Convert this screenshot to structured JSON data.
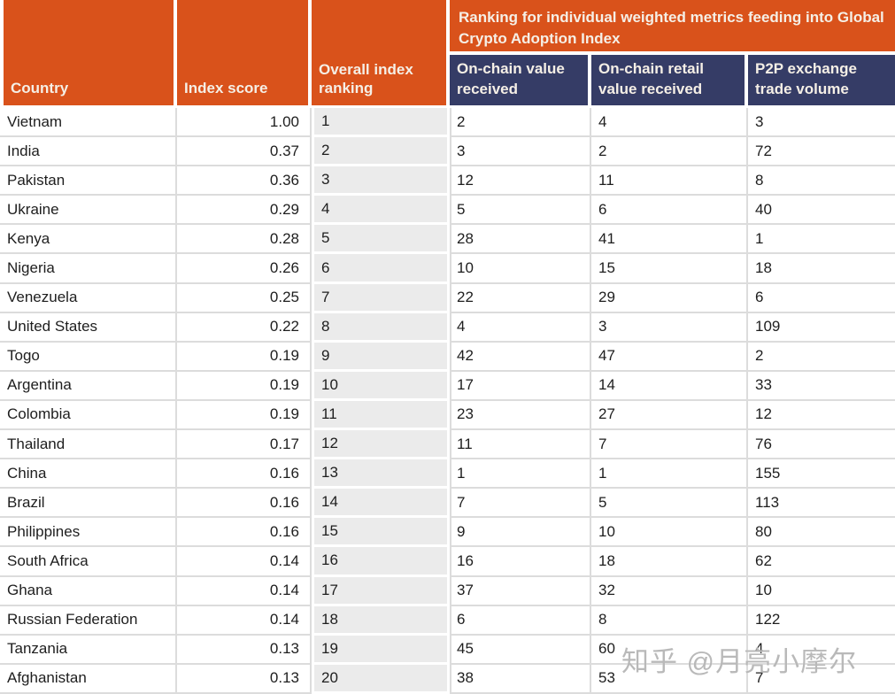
{
  "chart_data": {
    "type": "table",
    "group_header": "Ranking for individual weighted metrics feeding into Global Crypto Adoption Index",
    "columns": [
      "Country",
      "Index score",
      "Overall index ranking",
      "On-chain value received",
      "On-chain retail value received",
      "P2P exchange trade volume"
    ],
    "rows": [
      [
        "Vietnam",
        "1.00",
        "1",
        "2",
        "4",
        "3"
      ],
      [
        "India",
        "0.37",
        "2",
        "3",
        "2",
        "72"
      ],
      [
        "Pakistan",
        "0.36",
        "3",
        "12",
        "11",
        "8"
      ],
      [
        "Ukraine",
        "0.29",
        "4",
        "5",
        "6",
        "40"
      ],
      [
        "Kenya",
        "0.28",
        "5",
        "28",
        "41",
        "1"
      ],
      [
        "Nigeria",
        "0.26",
        "6",
        "10",
        "15",
        "18"
      ],
      [
        "Venezuela",
        "0.25",
        "7",
        "22",
        "29",
        "6"
      ],
      [
        "United States",
        "0.22",
        "8",
        "4",
        "3",
        "109"
      ],
      [
        "Togo",
        "0.19",
        "9",
        "42",
        "47",
        "2"
      ],
      [
        "Argentina",
        "0.19",
        "10",
        "17",
        "14",
        "33"
      ],
      [
        "Colombia",
        "0.19",
        "11",
        "23",
        "27",
        "12"
      ],
      [
        "Thailand",
        "0.17",
        "12",
        "11",
        "7",
        "76"
      ],
      [
        "China",
        "0.16",
        "13",
        "1",
        "1",
        "155"
      ],
      [
        "Brazil",
        "0.16",
        "14",
        "7",
        "5",
        "113"
      ],
      [
        "Philippines",
        "0.16",
        "15",
        "9",
        "10",
        "80"
      ],
      [
        "South Africa",
        "0.14",
        "16",
        "16",
        "18",
        "62"
      ],
      [
        "Ghana",
        "0.14",
        "17",
        "37",
        "32",
        "10"
      ],
      [
        "Russian Federation",
        "0.14",
        "18",
        "6",
        "8",
        "122"
      ],
      [
        "Tanzania",
        "0.13",
        "19",
        "45",
        "60",
        "4"
      ],
      [
        "Afghanistan",
        "0.13",
        "20",
        "38",
        "53",
        "7"
      ]
    ],
    "layout": {
      "group_header_spans_columns": [
        4,
        5,
        6
      ],
      "ranking_column_shaded": true
    }
  },
  "watermark": {
    "text": "知乎 @月亮小摩尔"
  },
  "colors": {
    "header_orange": "#d9521b",
    "header_navy": "#353c66",
    "header_text": "#f5efe6",
    "ranking_column_bg": "#ebebeb",
    "row_border": "#dcdcdc",
    "body_text": "#1e1e1e"
  }
}
